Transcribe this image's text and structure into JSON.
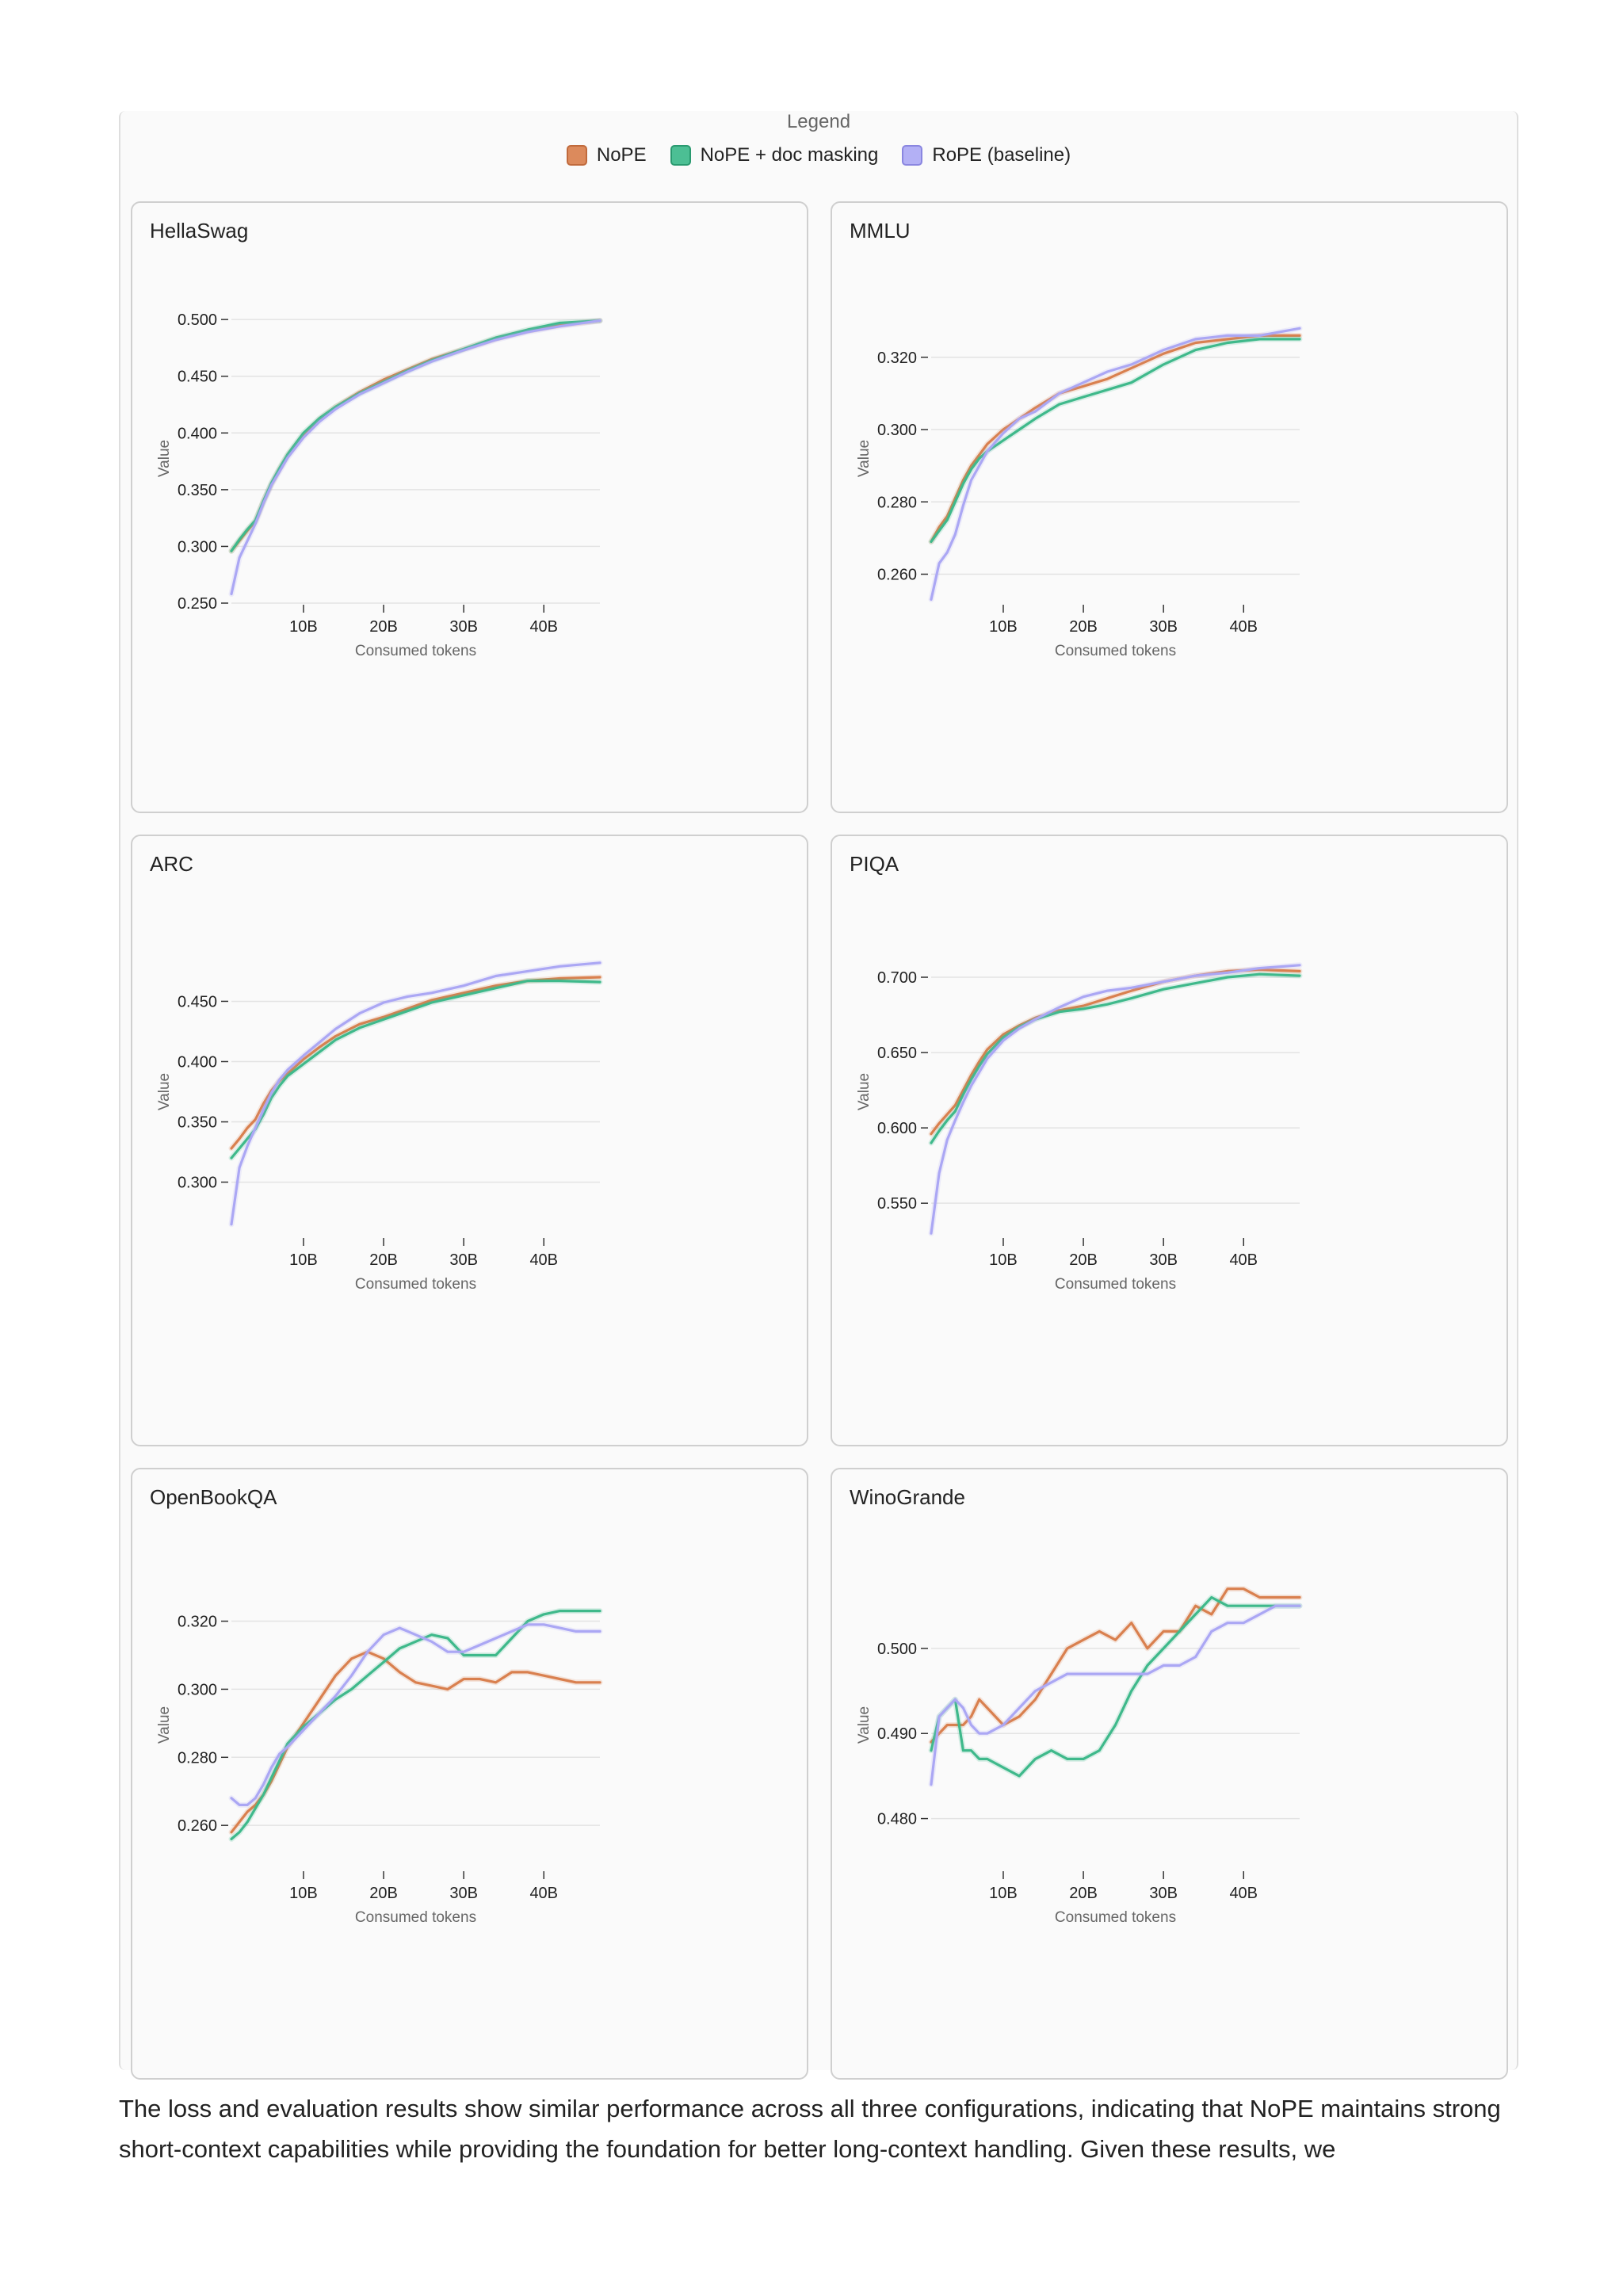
{
  "legend": {
    "title": "Legend",
    "items": [
      {
        "label": "NoPE",
        "color": "#dc8a5c",
        "border": "#c06a3c"
      },
      {
        "label": "NoPE + doc masking",
        "color": "#4cbf94",
        "border": "#2a9a70"
      },
      {
        "label": "RoPE (baseline)",
        "color": "#b3b0f5",
        "border": "#8a86e0"
      }
    ]
  },
  "caption": "The loss and evaluation results show similar performance across all three configurations, indicating that NoPE maintains strong short-context capabilities while providing the foundation for better long-context handling. Given these results, we",
  "chart_data": [
    {
      "type": "line",
      "title": "HellaSwag",
      "xlabel": "Consumed tokens",
      "ylabel": "Value",
      "xlim": [
        1,
        47
      ],
      "ylim": [
        0.25,
        0.505
      ],
      "xticks": [
        10,
        20,
        30,
        40
      ],
      "xtick_labels": [
        "10B",
        "20B",
        "30B",
        "40B"
      ],
      "yticks": [
        0.25,
        0.3,
        0.35,
        0.4,
        0.45,
        0.5
      ],
      "ytick_labels": [
        "0.250",
        "0.300",
        "0.350",
        "0.400",
        "0.450",
        "0.500"
      ],
      "x": [
        1,
        2,
        3,
        4,
        5,
        6,
        7,
        8,
        10,
        12,
        14,
        17,
        20,
        23,
        26,
        30,
        34,
        38,
        42,
        47
      ],
      "series": [
        {
          "name": "NoPE",
          "values": [
            0.296,
            0.305,
            0.314,
            0.322,
            0.34,
            0.355,
            0.368,
            0.38,
            0.398,
            0.412,
            0.423,
            0.436,
            0.447,
            0.456,
            0.465,
            0.474,
            0.483,
            0.49,
            0.495,
            0.499
          ]
        },
        {
          "name": "NoPE + doc masking",
          "values": [
            0.296,
            0.306,
            0.315,
            0.323,
            0.34,
            0.356,
            0.369,
            0.381,
            0.4,
            0.413,
            0.423,
            0.435,
            0.445,
            0.455,
            0.464,
            0.474,
            0.484,
            0.491,
            0.497,
            0.499
          ]
        },
        {
          "name": "RoPE (baseline)",
          "values": [
            0.258,
            0.29,
            0.305,
            0.32,
            0.338,
            0.354,
            0.366,
            0.378,
            0.396,
            0.41,
            0.421,
            0.434,
            0.444,
            0.454,
            0.463,
            0.473,
            0.482,
            0.489,
            0.494,
            0.499
          ]
        }
      ]
    },
    {
      "type": "line",
      "title": "MMLU",
      "xlabel": "Consumed tokens",
      "ylabel": "Value",
      "xlim": [
        1,
        47
      ],
      "ylim": [
        0.252,
        0.332
      ],
      "xticks": [
        10,
        20,
        30,
        40
      ],
      "xtick_labels": [
        "10B",
        "20B",
        "30B",
        "40B"
      ],
      "yticks": [
        0.26,
        0.28,
        0.3,
        0.32
      ],
      "ytick_labels": [
        "0.260",
        "0.280",
        "0.300",
        "0.320"
      ],
      "x": [
        1,
        2,
        3,
        4,
        5,
        6,
        7,
        8,
        10,
        12,
        14,
        17,
        20,
        23,
        26,
        30,
        34,
        38,
        42,
        47
      ],
      "series": [
        {
          "name": "NoPE",
          "values": [
            0.269,
            0.273,
            0.276,
            0.281,
            0.286,
            0.29,
            0.293,
            0.296,
            0.3,
            0.303,
            0.306,
            0.31,
            0.312,
            0.314,
            0.317,
            0.321,
            0.324,
            0.325,
            0.326,
            0.326
          ]
        },
        {
          "name": "NoPE + doc masking",
          "values": [
            0.269,
            0.272,
            0.275,
            0.28,
            0.285,
            0.289,
            0.292,
            0.294,
            0.297,
            0.3,
            0.303,
            0.307,
            0.309,
            0.311,
            0.313,
            0.318,
            0.322,
            0.324,
            0.325,
            0.325
          ]
        },
        {
          "name": "RoPE (baseline)",
          "values": [
            0.253,
            0.263,
            0.266,
            0.271,
            0.279,
            0.286,
            0.29,
            0.294,
            0.299,
            0.303,
            0.305,
            0.31,
            0.313,
            0.316,
            0.318,
            0.322,
            0.325,
            0.326,
            0.326,
            0.328
          ]
        }
      ]
    },
    {
      "type": "line",
      "title": "ARC",
      "xlabel": "Consumed tokens",
      "ylabel": "Value",
      "xlim": [
        1,
        47
      ],
      "ylim": [
        0.255,
        0.495
      ],
      "xticks": [
        10,
        20,
        30,
        40
      ],
      "xtick_labels": [
        "10B",
        "20B",
        "30B",
        "40B"
      ],
      "yticks": [
        0.3,
        0.35,
        0.4,
        0.45
      ],
      "ytick_labels": [
        "0.300",
        "0.350",
        "0.400",
        "0.450"
      ],
      "x": [
        1,
        2,
        3,
        4,
        5,
        6,
        7,
        8,
        10,
        12,
        14,
        17,
        20,
        23,
        26,
        30,
        34,
        38,
        42,
        47
      ],
      "series": [
        {
          "name": "NoPE",
          "values": [
            0.328,
            0.336,
            0.345,
            0.352,
            0.365,
            0.376,
            0.384,
            0.39,
            0.402,
            0.412,
            0.421,
            0.431,
            0.437,
            0.444,
            0.451,
            0.457,
            0.463,
            0.467,
            0.469,
            0.47
          ]
        },
        {
          "name": "NoPE + doc masking",
          "values": [
            0.32,
            0.328,
            0.336,
            0.344,
            0.356,
            0.37,
            0.38,
            0.388,
            0.398,
            0.408,
            0.418,
            0.428,
            0.435,
            0.442,
            0.449,
            0.455,
            0.461,
            0.467,
            0.467,
            0.466
          ]
        },
        {
          "name": "RoPE (baseline)",
          "values": [
            0.265,
            0.312,
            0.33,
            0.345,
            0.36,
            0.374,
            0.385,
            0.393,
            0.405,
            0.416,
            0.427,
            0.44,
            0.449,
            0.454,
            0.457,
            0.463,
            0.471,
            0.475,
            0.479,
            0.482
          ]
        }
      ]
    },
    {
      "type": "line",
      "title": "PIQA",
      "xlabel": "Consumed tokens",
      "ylabel": "Value",
      "xlim": [
        1,
        47
      ],
      "ylim": [
        0.528,
        0.72
      ],
      "xticks": [
        10,
        20,
        30,
        40
      ],
      "xtick_labels": [
        "10B",
        "20B",
        "30B",
        "40B"
      ],
      "yticks": [
        0.55,
        0.6,
        0.65,
        0.7
      ],
      "ytick_labels": [
        "0.550",
        "0.600",
        "0.650",
        "0.700"
      ],
      "x": [
        1,
        2,
        3,
        4,
        5,
        6,
        7,
        8,
        10,
        12,
        14,
        17,
        20,
        23,
        26,
        30,
        34,
        38,
        42,
        47
      ],
      "series": [
        {
          "name": "NoPE",
          "values": [
            0.596,
            0.603,
            0.609,
            0.615,
            0.625,
            0.635,
            0.644,
            0.652,
            0.662,
            0.668,
            0.673,
            0.678,
            0.681,
            0.686,
            0.691,
            0.697,
            0.701,
            0.704,
            0.705,
            0.704
          ]
        },
        {
          "name": "NoPE + doc masking",
          "values": [
            0.59,
            0.598,
            0.605,
            0.611,
            0.622,
            0.632,
            0.641,
            0.649,
            0.66,
            0.667,
            0.672,
            0.677,
            0.679,
            0.682,
            0.686,
            0.692,
            0.696,
            0.7,
            0.702,
            0.701
          ]
        },
        {
          "name": "RoPE (baseline)",
          "values": [
            0.53,
            0.57,
            0.592,
            0.605,
            0.617,
            0.628,
            0.637,
            0.646,
            0.658,
            0.666,
            0.672,
            0.68,
            0.687,
            0.691,
            0.693,
            0.697,
            0.701,
            0.703,
            0.706,
            0.708
          ]
        }
      ]
    },
    {
      "type": "line",
      "title": "OpenBookQA",
      "xlabel": "Consumed tokens",
      "ylabel": "Value",
      "xlim": [
        1,
        47
      ],
      "ylim": [
        0.247,
        0.332
      ],
      "xticks": [
        10,
        20,
        30,
        40
      ],
      "xtick_labels": [
        "10B",
        "20B",
        "30B",
        "40B"
      ],
      "yticks": [
        0.26,
        0.28,
        0.3,
        0.32
      ],
      "ytick_labels": [
        "0.260",
        "0.280",
        "0.300",
        "0.320"
      ],
      "x": [
        1,
        2,
        3,
        4,
        5,
        6,
        7,
        8,
        10,
        12,
        14,
        16,
        18,
        20,
        22,
        24,
        26,
        28,
        30,
        32,
        34,
        36,
        38,
        40,
        42,
        44,
        47
      ],
      "series": [
        {
          "name": "NoPE",
          "values": [
            0.258,
            0.261,
            0.264,
            0.266,
            0.269,
            0.273,
            0.278,
            0.283,
            0.29,
            0.297,
            0.304,
            0.309,
            0.311,
            0.309,
            0.305,
            0.302,
            0.301,
            0.3,
            0.303,
            0.303,
            0.302,
            0.305,
            0.305,
            0.304,
            0.303,
            0.302,
            0.302
          ]
        },
        {
          "name": "NoPE + doc masking",
          "values": [
            0.256,
            0.258,
            0.261,
            0.265,
            0.269,
            0.274,
            0.279,
            0.284,
            0.289,
            0.293,
            0.297,
            0.3,
            0.304,
            0.308,
            0.312,
            0.314,
            0.316,
            0.315,
            0.31,
            0.31,
            0.31,
            0.315,
            0.32,
            0.322,
            0.323,
            0.323,
            0.323
          ]
        },
        {
          "name": "RoPE (baseline)",
          "values": [
            0.268,
            0.266,
            0.266,
            0.268,
            0.272,
            0.277,
            0.281,
            0.283,
            0.288,
            0.293,
            0.298,
            0.304,
            0.311,
            0.316,
            0.318,
            0.316,
            0.314,
            0.311,
            0.311,
            0.313,
            0.315,
            0.317,
            0.319,
            0.319,
            0.318,
            0.317,
            0.317
          ]
        }
      ]
    },
    {
      "type": "line",
      "title": "WinoGrande",
      "xlabel": "Consumed tokens",
      "ylabel": "Value",
      "xlim": [
        1,
        47
      ],
      "ylim": [
        0.474,
        0.508
      ],
      "xticks": [
        10,
        20,
        30,
        40
      ],
      "xtick_labels": [
        "10B",
        "20B",
        "30B",
        "40B"
      ],
      "yticks": [
        0.48,
        0.49,
        0.5
      ],
      "ytick_labels": [
        "0.480",
        "0.490",
        "0.500"
      ],
      "x": [
        1,
        2,
        3,
        4,
        5,
        6,
        7,
        8,
        10,
        12,
        14,
        16,
        18,
        20,
        22,
        24,
        26,
        28,
        30,
        32,
        34,
        36,
        38,
        40,
        42,
        44,
        47
      ],
      "series": [
        {
          "name": "NoPE",
          "values": [
            0.489,
            0.49,
            0.491,
            0.491,
            0.491,
            0.492,
            0.494,
            0.493,
            0.491,
            0.492,
            0.494,
            0.497,
            0.5,
            0.501,
            0.502,
            0.501,
            0.503,
            0.5,
            0.502,
            0.502,
            0.505,
            0.504,
            0.507,
            0.507,
            0.506,
            0.506,
            0.506
          ]
        },
        {
          "name": "NoPE + doc masking",
          "values": [
            0.488,
            0.492,
            0.493,
            0.494,
            0.488,
            0.488,
            0.487,
            0.487,
            0.486,
            0.485,
            0.487,
            0.488,
            0.487,
            0.487,
            0.488,
            0.491,
            0.495,
            0.498,
            0.5,
            0.502,
            0.504,
            0.506,
            0.505,
            0.505,
            0.505,
            0.505,
            0.505
          ]
        },
        {
          "name": "RoPE (baseline)",
          "values": [
            0.484,
            0.492,
            0.493,
            0.494,
            0.493,
            0.491,
            0.49,
            0.49,
            0.491,
            0.493,
            0.495,
            0.496,
            0.497,
            0.497,
            0.497,
            0.497,
            0.497,
            0.497,
            0.498,
            0.498,
            0.499,
            0.502,
            0.503,
            0.503,
            0.504,
            0.505,
            0.505
          ]
        }
      ]
    }
  ]
}
